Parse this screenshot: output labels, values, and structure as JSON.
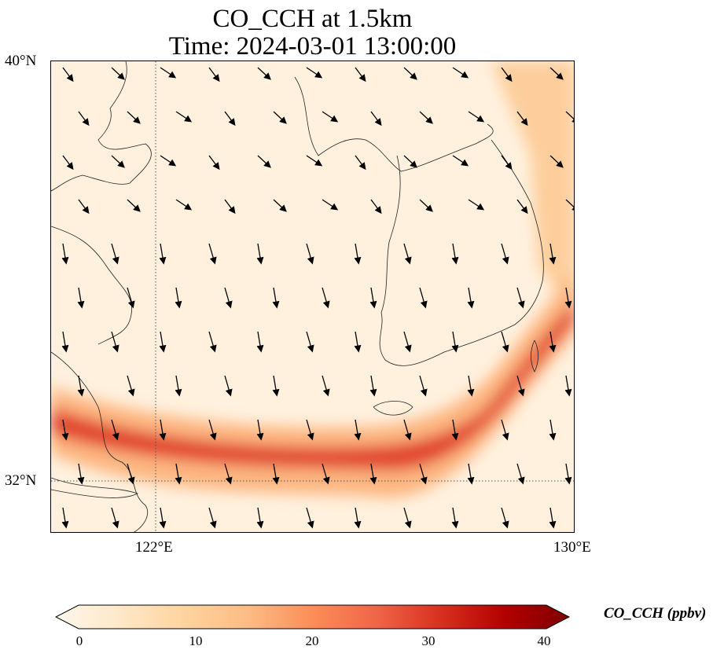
{
  "title": {
    "line1": "CO_CCH at 1.5km",
    "line2": "Time: 2024-03-01 13:00:00"
  },
  "map": {
    "lat_labels": [
      "40°N",
      "32°N"
    ],
    "lon_labels": [
      "122°E",
      "130°E"
    ],
    "lon_range": [
      120,
      130
    ],
    "lat_range": [
      31,
      40
    ],
    "gridlines": {
      "lon": [
        122,
        130
      ],
      "lat": [
        32,
        40
      ],
      "style": "dotted"
    },
    "field": "CO_CCH",
    "plume_description_values": {
      "background_ppbv": 2,
      "band_peak_ppbv": 28,
      "east_edge_ppbv": 12
    },
    "wind_arrows": "prevailing north-westerly to northerly flow"
  },
  "colorbar": {
    "label": "CO_CCH (ppbv)",
    "ticks": [
      "0",
      "10",
      "20",
      "30",
      "40"
    ],
    "min": 0,
    "max": 40,
    "extend": "both",
    "colormap": "OrRd",
    "colors": [
      "#fff7ec",
      "#fee8c8",
      "#fdd49e",
      "#fdbb84",
      "#fc8d59",
      "#ef6548",
      "#d7301f",
      "#b30000",
      "#7f0000"
    ]
  }
}
